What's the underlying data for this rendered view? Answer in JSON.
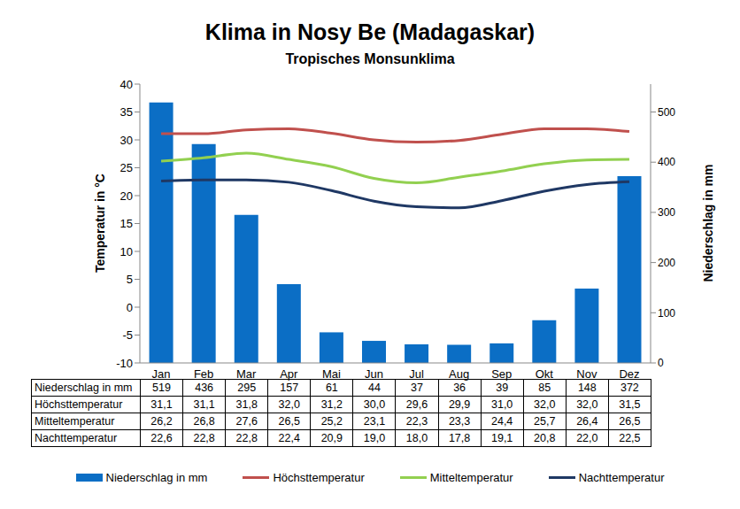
{
  "chart_data": {
    "type": "bar",
    "title": "Klima in Nosy Be (Madagaskar)",
    "subtitle": "Tropisches Monsunklima",
    "y_label": "Temperatur in °C",
    "y2_label": "Niederschlag in mm",
    "categories": [
      "Jan",
      "Feb",
      "Mar",
      "Apr",
      "Mai",
      "Jun",
      "Jul",
      "Aug",
      "Sep",
      "Okt",
      "Nov",
      "Dez"
    ],
    "ylim": [
      -10,
      40
    ],
    "yticks": [
      -10,
      -5,
      0,
      5,
      10,
      15,
      20,
      25,
      30,
      35,
      40
    ],
    "y2lim": [
      0,
      555.6
    ],
    "y2ticks": [
      0,
      100,
      200,
      300,
      400,
      500
    ],
    "grid": false,
    "legend": "bottom",
    "series": [
      {
        "name": "Niederschlag in mm",
        "type": "bar",
        "axis": "y2",
        "color": "#0b6ec5",
        "values": [
          519,
          436,
          295,
          157,
          61,
          44,
          37,
          36,
          39,
          85,
          148,
          372
        ]
      },
      {
        "name": "Höchsttemperatur",
        "type": "line",
        "color": "#c0504d",
        "values": [
          31.1,
          31.1,
          31.8,
          32.0,
          31.2,
          30.0,
          29.6,
          29.9,
          31.0,
          32.0,
          32.0,
          31.5
        ],
        "value_labels": [
          "31,1",
          "31,1",
          "31,8",
          "32,0",
          "31,2",
          "30,0",
          "29,6",
          "29,9",
          "31,0",
          "32,0",
          "32,0",
          "31,5"
        ]
      },
      {
        "name": "Mitteltemperatur",
        "type": "line",
        "color": "#92d050",
        "values": [
          26.2,
          26.8,
          27.6,
          26.5,
          25.2,
          23.1,
          22.3,
          23.3,
          24.4,
          25.7,
          26.4,
          26.5
        ],
        "value_labels": [
          "26,2",
          "26,8",
          "27,6",
          "26,5",
          "25,2",
          "23,1",
          "22,3",
          "23,3",
          "24,4",
          "25,7",
          "26,4",
          "26,5"
        ]
      },
      {
        "name": "Nachttemperatur",
        "type": "line",
        "color": "#1f3864",
        "values": [
          22.6,
          22.8,
          22.8,
          22.4,
          20.9,
          19.0,
          18.0,
          17.8,
          19.1,
          20.8,
          22.0,
          22.5
        ],
        "value_labels": [
          "22,6",
          "22,8",
          "22,8",
          "22,4",
          "20,9",
          "19,0",
          "18,0",
          "17,8",
          "19,1",
          "20,8",
          "22,0",
          "22,5"
        ]
      }
    ]
  }
}
